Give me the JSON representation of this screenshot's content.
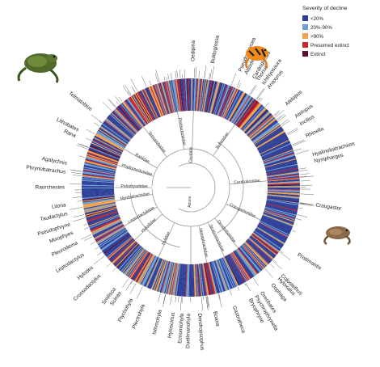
{
  "legend": {
    "title": "Severity of decline",
    "items": [
      {
        "label": "<20%",
        "color": "#2e3f99"
      },
      {
        "label": "20%-90%",
        "color": "#6fa0d2"
      },
      {
        "label": ">90%",
        "color": "#f2a24a"
      },
      {
        "label": "Presumed extinct",
        "color": "#c6262e"
      },
      {
        "label": "Extinct",
        "color": "#5a1030"
      }
    ]
  },
  "genera": [
    {
      "label": "Bolitoglossa",
      "angle": -80
    },
    {
      "label": "Pseudoeurycea",
      "angle": -67
    },
    {
      "label": "Thorius",
      "angle": -58
    },
    {
      "label": "Atelopus",
      "angle": -34
    },
    {
      "label": "Telmatobius",
      "angle": -142
    },
    {
      "label": "Rana",
      "angle": -156
    },
    {
      "label": "Lithobates",
      "angle": -153
    },
    {
      "label": "Agalychnis",
      "angle": -169
    },
    {
      "label": "Phrynobatrachus",
      "angle": -173
    },
    {
      "label": "Raorchestes",
      "angle": -180
    },
    {
      "label": "Litoria",
      "angle": 172
    },
    {
      "label": "Taudactylus",
      "angle": 168
    },
    {
      "label": "Pseudophryne",
      "angle": 163
    },
    {
      "label": "Mixophyes",
      "angle": 159
    },
    {
      "label": "Pleurodema",
      "angle": 154
    },
    {
      "label": "Leptodactylus",
      "angle": 148
    },
    {
      "label": "Hylodes",
      "angle": 141
    },
    {
      "label": "Crossodactylus",
      "angle": 136
    },
    {
      "label": "Smilisca",
      "angle": 127
    },
    {
      "label": "Scinax",
      "angle": 124
    },
    {
      "label": "Ptychohyla",
      "angle": 118
    },
    {
      "label": "Plectrohyla",
      "angle": 112
    },
    {
      "label": "Isthmohyla",
      "angle": 104
    },
    {
      "label": "Hyloscirtus",
      "angle": 98
    },
    {
      "label": "Ecnomiohyla",
      "angle": 94
    },
    {
      "label": "Duellmanohyla",
      "angle": 91
    },
    {
      "label": "Dendropsophus",
      "angle": 86
    },
    {
      "label": "Boana",
      "angle": 79
    },
    {
      "label": "Gastrotheca",
      "angle": 70
    },
    {
      "label": "Bryophryne",
      "angle": 62
    },
    {
      "label": "Psychrophrynella",
      "angle": 59
    },
    {
      "label": "Oreobates",
      "angle": 56
    },
    {
      "label": "Oophaga",
      "angle": 50
    },
    {
      "label": "Hyloxalus",
      "angle": 46
    },
    {
      "label": "Colostethus",
      "angle": 44
    },
    {
      "label": "Pristimantis",
      "angle": 32
    },
    {
      "label": "Craugastor",
      "angle": 8
    },
    {
      "label": "Nymphargus",
      "angle": -12
    },
    {
      "label": "Hyalinobatrachium",
      "angle": -15
    },
    {
      "label": "Rhinella",
      "angle": -24
    },
    {
      "label": "Incilius",
      "angle": -30
    },
    {
      "label": "Atelopus",
      "angle": -41
    },
    {
      "label": "Anaxyrus",
      "angle": -52
    },
    {
      "label": "Ichthyosaura",
      "angle": -55
    },
    {
      "label": "Cardioglossa",
      "angle": -60
    },
    {
      "label": "Alsodes",
      "angle": -64
    },
    {
      "label": "Oedipina",
      "angle": -89
    }
  ],
  "families": [
    {
      "label": "Caudata",
      "angle": -88
    },
    {
      "label": "Plethodontidae",
      "angle": -100
    },
    {
      "label": "Telmatobiidae",
      "angle": -128
    },
    {
      "label": "Ranidae",
      "angle": -150
    },
    {
      "label": "Phyllomedusidae",
      "angle": -163
    },
    {
      "label": "Pelodryadidae",
      "angle": 180
    },
    {
      "label": "Myobatrachidae",
      "angle": 170
    },
    {
      "label": "Leptodactylidae",
      "angle": 150
    },
    {
      "label": "Hylodidae",
      "angle": 137
    },
    {
      "label": "Hylidae",
      "angle": 115
    },
    {
      "label": "Anura",
      "angle": 90
    },
    {
      "label": "Hemiphractidae",
      "angle": 78
    },
    {
      "label": "Strabomantidae",
      "angle": 64
    },
    {
      "label": "Dendrobatidae",
      "angle": 52
    },
    {
      "label": "Craugastoridae",
      "angle": 25
    },
    {
      "label": "Centrolenidae",
      "angle": -5
    },
    {
      "label": "Bufonidae",
      "angle": -55
    }
  ],
  "icons": [
    "frog-illustration",
    "harlequin-toad-illustration",
    "brown-frog-illustration"
  ]
}
